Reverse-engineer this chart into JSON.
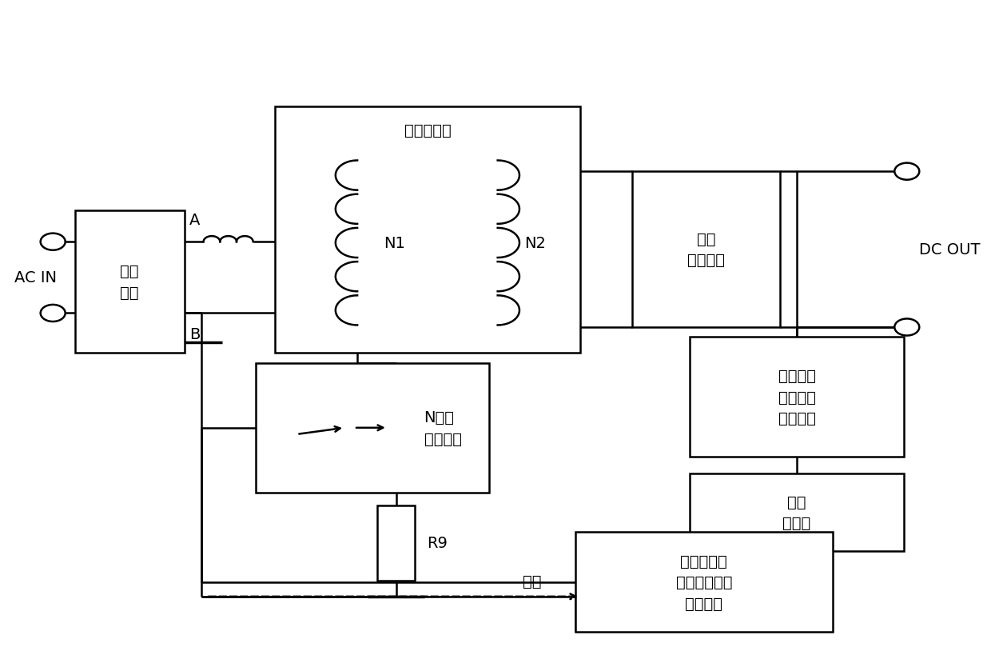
{
  "bg": "#ffffff",
  "lc": "#000000",
  "lw": 1.8,
  "fs": 14,
  "boxes": {
    "ri": [
      0.075,
      0.46,
      0.115,
      0.22
    ],
    "tr": [
      0.285,
      0.46,
      0.32,
      0.38
    ],
    "rf": [
      0.66,
      0.5,
      0.155,
      0.24
    ],
    "vc": [
      0.72,
      0.3,
      0.225,
      0.185
    ],
    "op": [
      0.72,
      0.155,
      0.225,
      0.12
    ],
    "pw": [
      0.6,
      0.03,
      0.27,
      0.155
    ],
    "mo": [
      0.265,
      0.245,
      0.245,
      0.2
    ]
  },
  "labels": {
    "ri": "整流\n电路",
    "tr": "隔离变压器",
    "rf": "整流\n滤波电路",
    "vc": "电压电流\n误差信号\n取样电路",
    "op": "光电\n耦合器",
    "pw": "脉宽调制及\n功率因数校正\n双效电路",
    "mo": "N沟道\n场效应管",
    "ac": "AC IN",
    "dc": "DC OUT",
    "A": "A",
    "B": "B",
    "N1": "N1",
    "N2": "N2",
    "R9": "R9",
    "sample": "取样"
  }
}
